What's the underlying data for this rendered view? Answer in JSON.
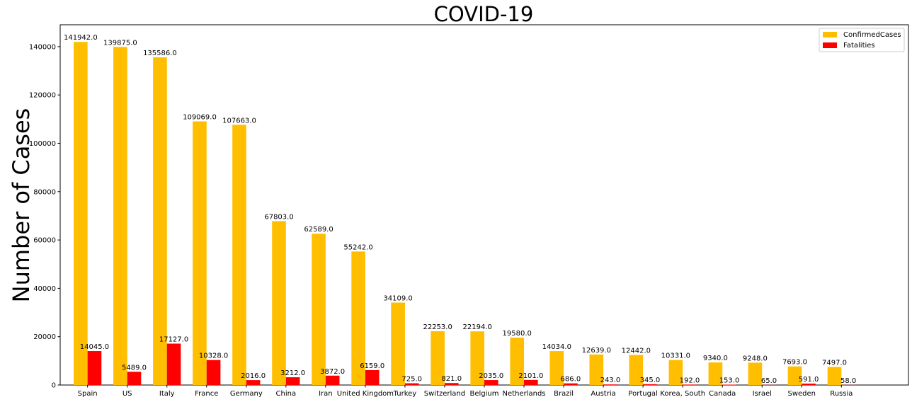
{
  "chart_data": {
    "type": "bar",
    "title": "COVID-19",
    "xlabel": "",
    "ylabel": "Number of Cases",
    "categories": [
      "Spain",
      "US",
      "Italy",
      "France",
      "Germany",
      "China",
      "Iran",
      "United Kingdom",
      "Turkey",
      "Switzerland",
      "Belgium",
      "Netherlands",
      "Brazil",
      "Austria",
      "Portugal",
      "Korea, South",
      "Canada",
      "Israel",
      "Sweden",
      "Russia"
    ],
    "series": [
      {
        "name": "ConfirmedCases",
        "color": "#ffbf00",
        "values": [
          141942.0,
          139875.0,
          135586.0,
          109069.0,
          107663.0,
          67803.0,
          62589.0,
          55242.0,
          34109.0,
          22253.0,
          22194.0,
          19580.0,
          14034.0,
          12639.0,
          12442.0,
          10331.0,
          9340.0,
          9248.0,
          7693.0,
          7497.0
        ],
        "labels": [
          "141942.0",
          "139875.0",
          "135586.0",
          "109069.0",
          "107663.0",
          "67803.0",
          "62589.0",
          "55242.0",
          "34109.0",
          "22253.0",
          "22194.0",
          "19580.0",
          "14034.0",
          "12639.0",
          "12442.0",
          "10331.0",
          "9340.0",
          "9248.0",
          "7693.0",
          "7497.0"
        ]
      },
      {
        "name": "Fatalities",
        "color": "#ff0000",
        "values": [
          14045.0,
          5489.0,
          17127.0,
          10328.0,
          2016.0,
          3212.0,
          3872.0,
          6159.0,
          725.0,
          821.0,
          2035.0,
          2101.0,
          686.0,
          243.0,
          345.0,
          192.0,
          153.0,
          65.0,
          591.0,
          58.0
        ],
        "labels": [
          "14045.0",
          "5489.0",
          "17127.0",
          "10328.0",
          "2016.0",
          "3212.0",
          "3872.0",
          "6159.0",
          "725.0",
          "821.0",
          "2035.0",
          "2101.0",
          "686.0",
          "243.0",
          "345.0",
          "192.0",
          "153.0",
          "65.0",
          "591.0",
          "58.0"
        ]
      }
    ],
    "yticks": [
      0,
      20000,
      40000,
      60000,
      80000,
      100000,
      120000,
      140000
    ],
    "ytick_labels": [
      "0",
      "20000",
      "40000",
      "60000",
      "80000",
      "100000",
      "120000",
      "140000"
    ],
    "ylim": [
      0,
      149039
    ],
    "grid": false,
    "legend_position": "top-right"
  }
}
